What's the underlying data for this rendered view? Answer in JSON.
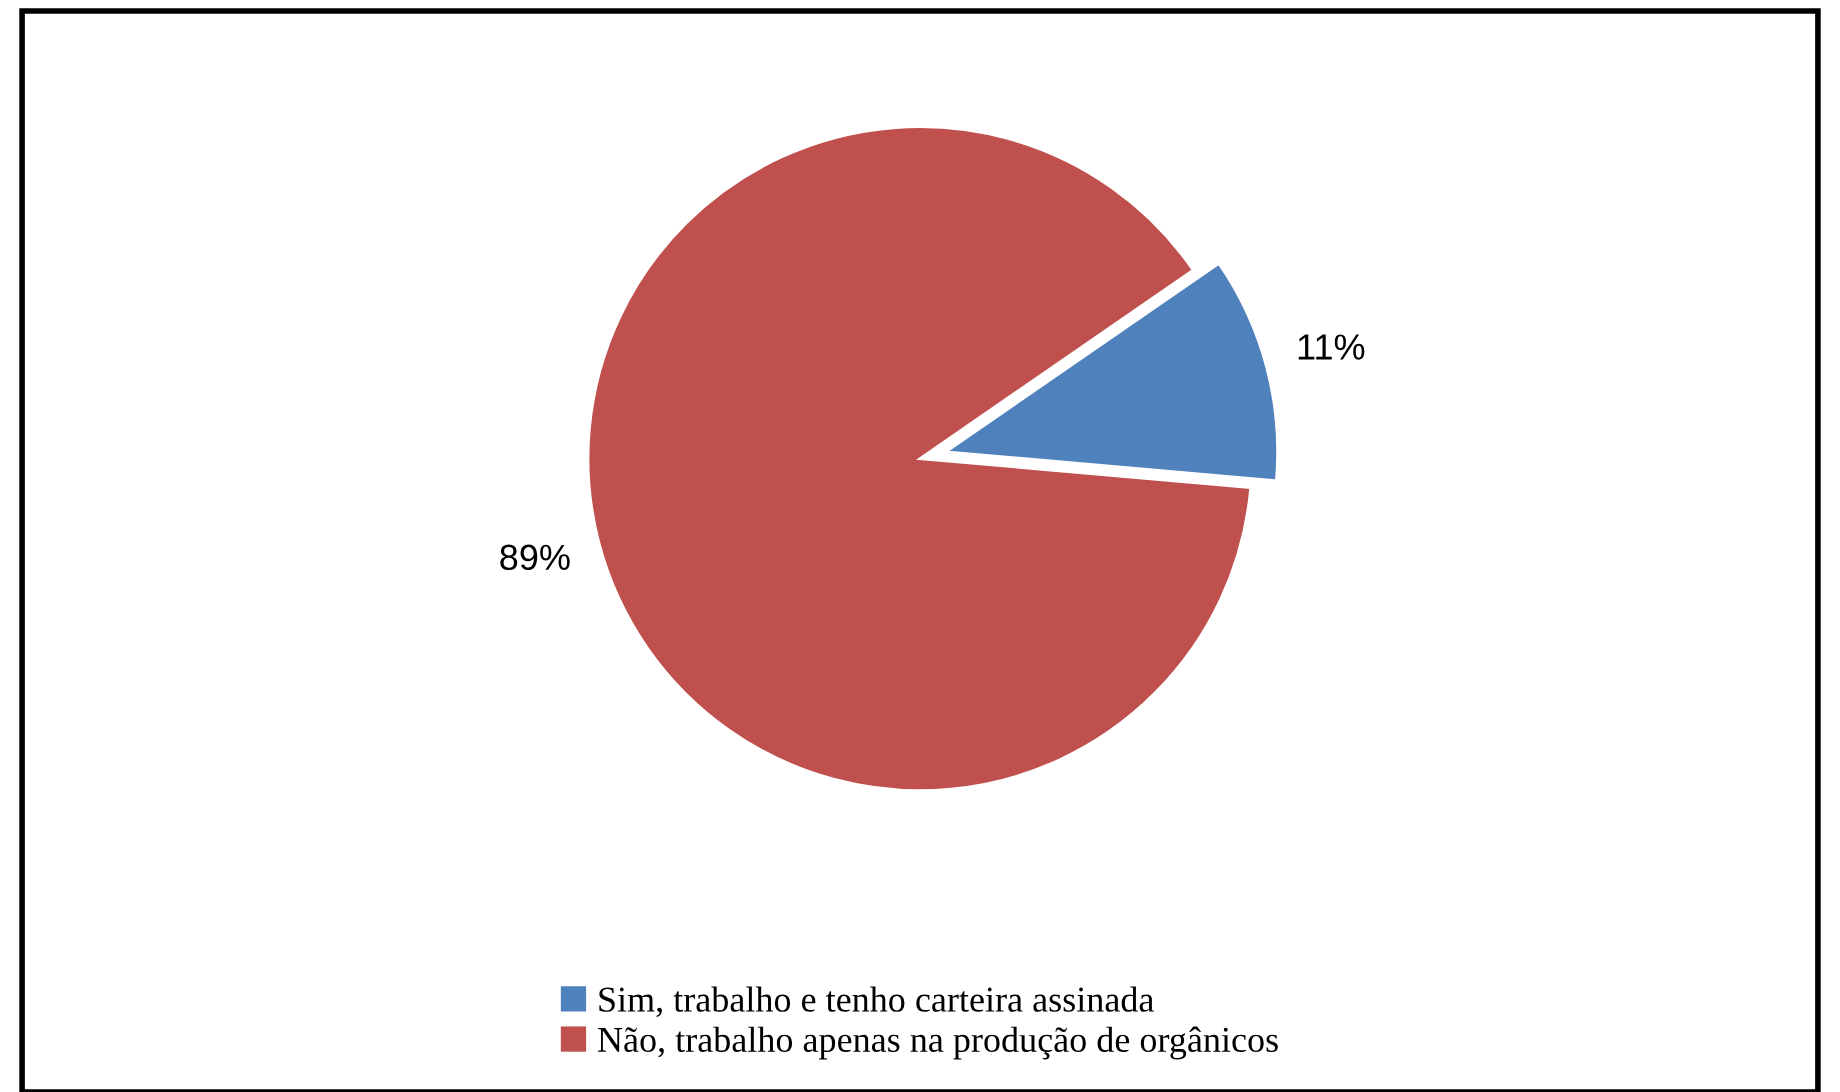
{
  "chart_data": {
    "type": "pie",
    "categories": [
      "Sim, trabalho e tenho carteira assinada",
      "Não, trabalho apenas na produção de orgânicos"
    ],
    "values": [
      11,
      89
    ],
    "colors": [
      "#4f81bd",
      "#c0504d"
    ],
    "value_labels": [
      "11%",
      "89%"
    ],
    "legend": "bottom"
  }
}
